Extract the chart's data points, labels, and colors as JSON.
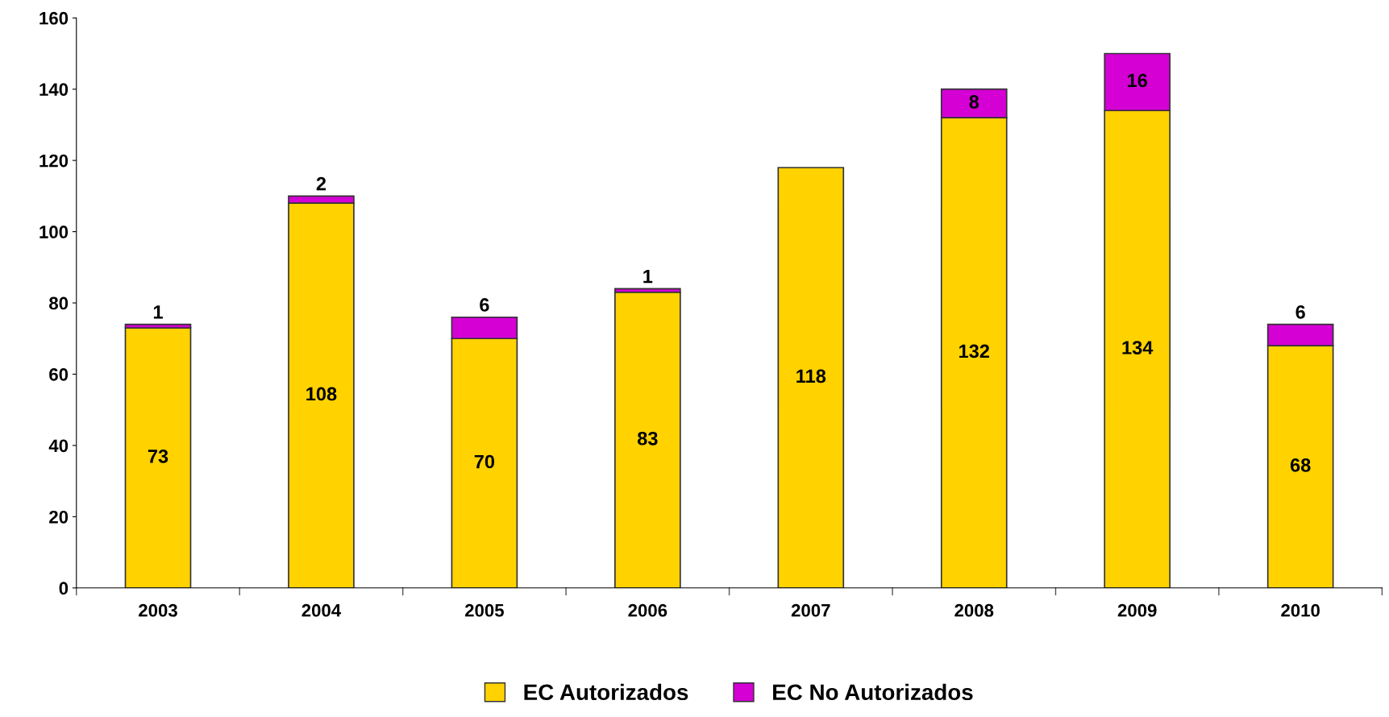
{
  "chart_data": {
    "type": "bar",
    "stacked": true,
    "categories": [
      "2003",
      "2004",
      "2005",
      "2006",
      "2007",
      "2008",
      "2009",
      "2010"
    ],
    "series": [
      {
        "name": "EC Autorizados",
        "color": "#ffd200",
        "values": [
          73,
          108,
          70,
          83,
          118,
          132,
          134,
          68
        ]
      },
      {
        "name": "EC No Autorizados",
        "color": "#d400d4",
        "values": [
          1,
          2,
          6,
          1,
          null,
          8,
          16,
          6
        ]
      }
    ],
    "ylim": [
      0,
      160
    ],
    "yticks": [
      0,
      20,
      40,
      60,
      80,
      100,
      120,
      140,
      160
    ],
    "data_labels": true,
    "grid": false,
    "legend": "bottom"
  }
}
